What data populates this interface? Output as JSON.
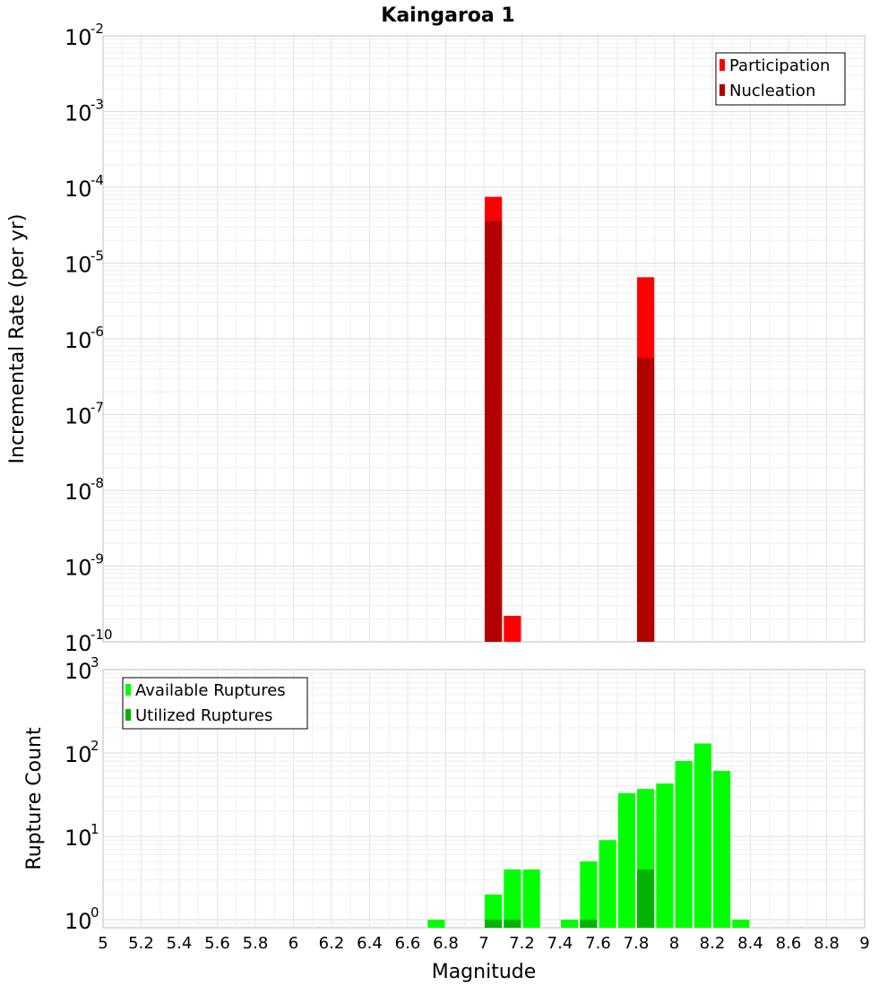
{
  "title": "Kaingaroa 1",
  "x_axis_label": "Magnitude",
  "x_ticks": [
    "5",
    "5.2",
    "5.4",
    "5.6",
    "5.8",
    "6",
    "6.2",
    "6.4",
    "6.6",
    "6.8",
    "7",
    "7.2",
    "7.4",
    "7.6",
    "7.8",
    "8",
    "8.2",
    "8.4",
    "8.6",
    "8.8",
    "9"
  ],
  "chart_data": [
    {
      "type": "bar",
      "ylabel": "Incremental Rate (per yr)",
      "y_scale": "log",
      "ylim": [
        1e-10,
        0.01
      ],
      "xlim": [
        5,
        9
      ],
      "y_tick_exponents": [
        "-2",
        "-3",
        "-4",
        "-5",
        "-6",
        "-7",
        "-8",
        "-9",
        "-10"
      ],
      "legend": {
        "placement": "top-right"
      },
      "grid": true,
      "bar_width": 0.09,
      "series": [
        {
          "name": "Participation",
          "color": "#ff0000",
          "points": [
            {
              "x": 7.05,
              "y": 7.5e-05
            },
            {
              "x": 7.15,
              "y": 2.2e-10
            },
            {
              "x": 7.85,
              "y": 6.5e-06
            }
          ]
        },
        {
          "name": "Nucleation",
          "color": "#b20000",
          "points": [
            {
              "x": 7.05,
              "y": 3.6e-05
            },
            {
              "x": 7.85,
              "y": 5.6e-07
            }
          ]
        }
      ]
    },
    {
      "type": "bar",
      "ylabel": "Rupture Count",
      "y_scale": "log",
      "ylim": [
        0.8,
        1000
      ],
      "xlim": [
        5,
        9
      ],
      "y_tick_exponents": [
        "3",
        "2",
        "1",
        "0"
      ],
      "legend": {
        "placement": "top-left"
      },
      "grid": true,
      "bar_width": 0.09,
      "series": [
        {
          "name": "Available Ruptures",
          "color": "#00ff00",
          "points": [
            {
              "x": 6.75,
              "y": 1
            },
            {
              "x": 7.05,
              "y": 2
            },
            {
              "x": 7.15,
              "y": 4
            },
            {
              "x": 7.25,
              "y": 4
            },
            {
              "x": 7.45,
              "y": 1
            },
            {
              "x": 7.55,
              "y": 5
            },
            {
              "x": 7.65,
              "y": 9
            },
            {
              "x": 7.75,
              "y": 33
            },
            {
              "x": 7.85,
              "y": 37
            },
            {
              "x": 7.95,
              "y": 43
            },
            {
              "x": 8.05,
              "y": 80
            },
            {
              "x": 8.15,
              "y": 130
            },
            {
              "x": 8.25,
              "y": 61
            },
            {
              "x": 8.35,
              "y": 1
            }
          ]
        },
        {
          "name": "Utilized Ruptures",
          "color": "#00b400",
          "points": [
            {
              "x": 7.05,
              "y": 1
            },
            {
              "x": 7.15,
              "y": 1
            },
            {
              "x": 7.55,
              "y": 1
            },
            {
              "x": 7.85,
              "y": 4
            }
          ]
        }
      ]
    }
  ]
}
